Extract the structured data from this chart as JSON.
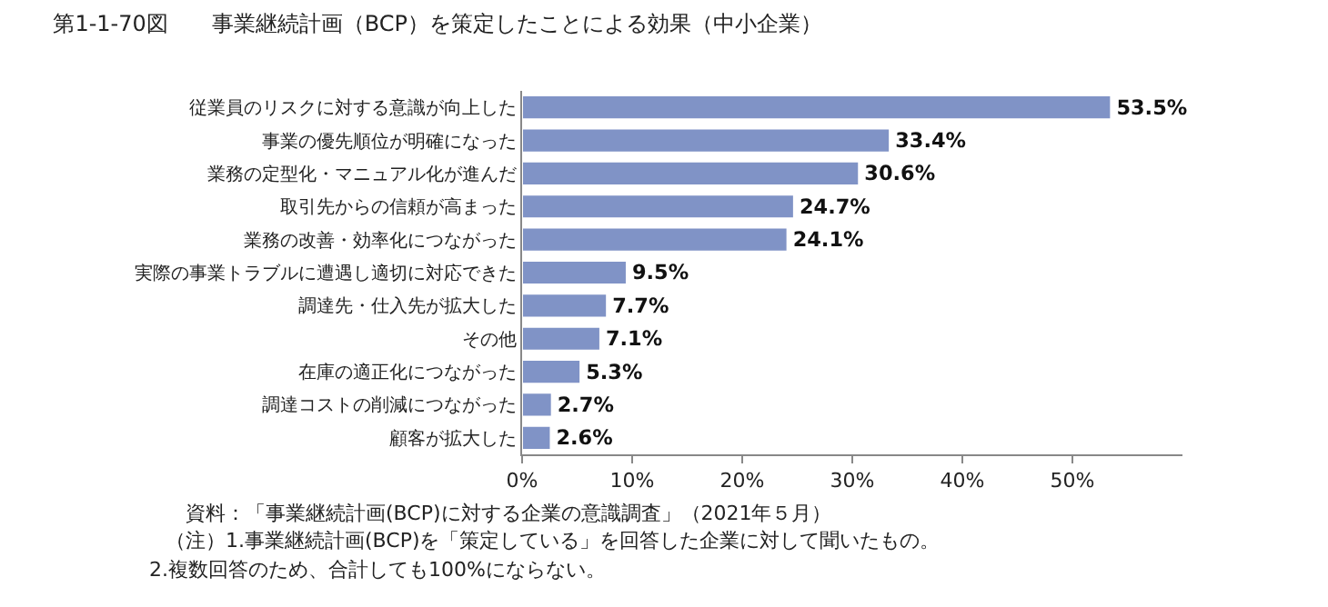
{
  "chart_data": {
    "type": "bar",
    "orientation": "horizontal",
    "title": "第1-1-70図　　事業継続計画（BCP）を策定したことによる効果（中小企業）",
    "categories": [
      "従業員のリスクに対する意識が向上した",
      "事業の優先順位が明確になった",
      "業務の定型化・マニュアル化が進んだ",
      "取引先からの信頼が高まった",
      "業務の改善・効率化につながった",
      "実際の事業トラブルに遭遇し適切に対応できた",
      "調達先・仕入先が拡大した",
      "その他",
      "在庫の適正化につながった",
      "調達コストの削減につながった",
      "顧客が拡大した"
    ],
    "values": [
      53.5,
      33.4,
      30.6,
      24.7,
      24.1,
      9.5,
      7.7,
      7.1,
      5.3,
      2.7,
      2.6
    ],
    "value_labels": [
      "53.5%",
      "33.4%",
      "30.6%",
      "24.7%",
      "24.1%",
      "9.5%",
      "7.7%",
      "7.1%",
      "5.3%",
      "2.7%",
      "2.6%"
    ],
    "color": "#8093c6",
    "xlim": [
      0,
      60
    ],
    "xticks": [
      {
        "value": 0,
        "label": "0%"
      },
      {
        "value": 10,
        "label": "10%"
      },
      {
        "value": 20,
        "label": "20%"
      },
      {
        "value": 30,
        "label": "30%"
      },
      {
        "value": 40,
        "label": "40%"
      },
      {
        "value": 50,
        "label": "50%"
      }
    ],
    "legend": false,
    "annotations": [
      "資料：「事業継続計画(BCP)に対する企業の意識調査」（2021年５月）",
      "（注）1.事業継続計画(BCP)を「策定している」を回答した企業に対して聞いたもの。",
      "2.複数回答のため、合計しても100%にならない。"
    ]
  }
}
